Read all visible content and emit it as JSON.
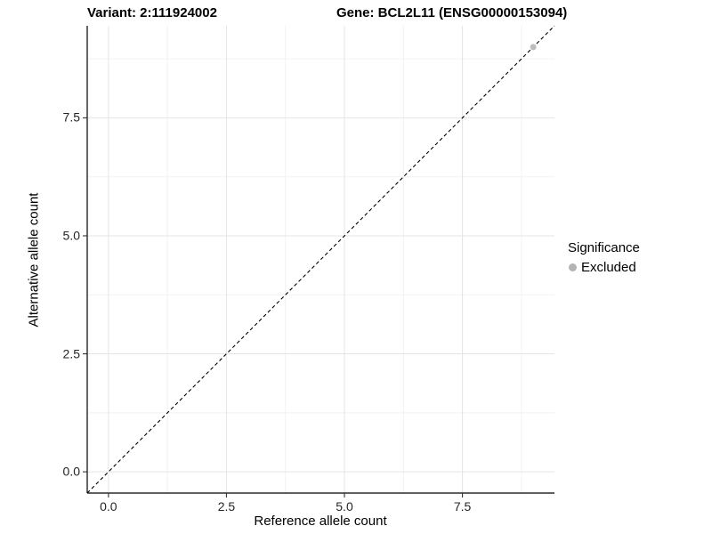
{
  "chart_data": {
    "type": "scatter",
    "title_left": "Variant: 2:111924002",
    "title_right": "Gene: BCL2L11 (ENSG00000153094)",
    "xlabel": "Reference allele count",
    "ylabel": "Alternative allele count",
    "xlim": [
      -0.45,
      9.45
    ],
    "ylim": [
      -0.45,
      9.45
    ],
    "x_ticks": {
      "values": [
        0,
        2.5,
        5,
        7.5
      ],
      "labels": [
        "0.0",
        "2.5",
        "5.0",
        "7.5"
      ]
    },
    "y_ticks": {
      "values": [
        0,
        2.5,
        5,
        7.5
      ],
      "labels": [
        "0.0",
        "2.5",
        "5.0",
        "7.5"
      ]
    },
    "minor_tick_values": [
      1.25,
      3.75,
      6.25,
      8.75
    ],
    "grid": {
      "major": true,
      "minor": true
    },
    "reference_line": {
      "type": "identity y=x",
      "style": "dashed",
      "color": "#000000"
    },
    "series": [
      {
        "name": "Excluded",
        "color": "#bdbdbd",
        "points": [
          {
            "x": 9,
            "y": 9
          }
        ]
      }
    ],
    "legend": {
      "title": "Significance",
      "position": "right",
      "items": [
        {
          "label": "Excluded",
          "color": "#b3b3b3"
        }
      ]
    },
    "colors": {
      "major_grid": "#e4e4e4",
      "minor_grid": "#f2f2f2",
      "axis_line": "#000000",
      "tick_mark": "#333333",
      "tick_label": "#262626"
    }
  }
}
